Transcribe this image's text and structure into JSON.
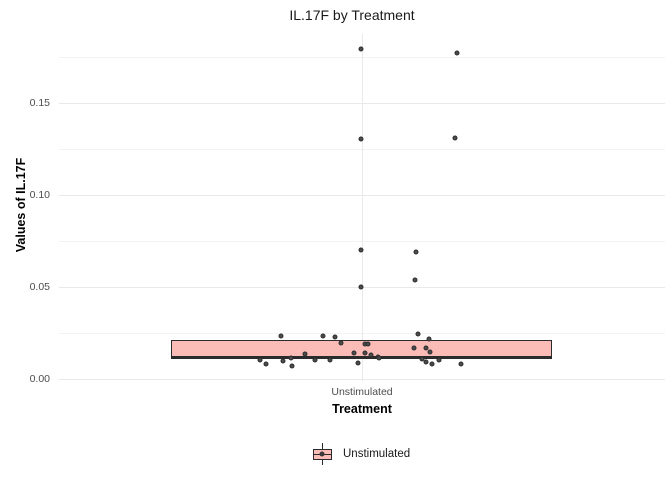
{
  "title": "IL.17F by Treatment",
  "axes": {
    "y_title": "Values of IL.17F",
    "x_title": "Treatment",
    "y_tick_labels": [
      "0.00",
      "0.05",
      "0.10",
      "0.15"
    ],
    "x_tick_label": "Unstimulated"
  },
  "legend": {
    "label": "Unstimulated"
  },
  "colors": {
    "box_fill": "#fbbcb8",
    "box_stroke": "#2b2b2b",
    "point": "#4c4c4c",
    "grid_major": "#e9e9e9",
    "grid_minor": "#f3f3f3",
    "tick_text": "#4d4d4d"
  },
  "chart_data": {
    "type": "boxplot",
    "title": "IL.17F by Treatment",
    "xlabel": "Treatment",
    "ylabel": "Values of IL.17F",
    "categories": [
      "Unstimulated"
    ],
    "ylim": [
      -0.001,
      0.188
    ],
    "y_major_ticks": [
      0.0,
      0.05,
      0.1,
      0.15
    ],
    "y_minor_ticks": [
      0.025,
      0.075,
      0.125,
      0.175
    ],
    "grid": true,
    "legend_position": "bottom",
    "box": {
      "q1": 0.011,
      "median": 0.012,
      "q3": 0.021,
      "whiskers_visible": false
    },
    "points_note": "jittered points as [x_offset_px_from_category_center, y_value]",
    "points": [
      [
        -80.5,
        0.0234
      ],
      [
        -38.5,
        0.0234
      ],
      [
        -26.5,
        0.0228
      ],
      [
        -20.5,
        0.0196
      ],
      [
        3.5,
        0.019
      ],
      [
        6.5,
        0.019
      ],
      [
        56.5,
        0.0245
      ],
      [
        67.5,
        0.0217
      ],
      [
        52.5,
        0.0168
      ],
      [
        64.5,
        0.0168
      ],
      [
        68.5,
        0.0147
      ],
      [
        -7.5,
        0.0141
      ],
      [
        3.5,
        0.0141
      ],
      [
        9.5,
        0.013
      ],
      [
        16.5,
        0.012
      ],
      [
        -56.5,
        0.0136
      ],
      [
        -70.5,
        0.0114
      ],
      [
        -101.5,
        0.0103
      ],
      [
        -95.5,
        0.0082
      ],
      [
        -78.5,
        0.0098
      ],
      [
        -69.5,
        0.0071
      ],
      [
        -46.5,
        0.0103
      ],
      [
        -31.5,
        0.0103
      ],
      [
        -3.5,
        0.0087
      ],
      [
        17.5,
        0.0114
      ],
      [
        60.5,
        0.0109
      ],
      [
        64.5,
        0.0092
      ],
      [
        70.5,
        0.0082
      ],
      [
        77.5,
        0.0103
      ],
      [
        99.5,
        0.0082
      ],
      [
        -0.5,
        0.1793
      ],
      [
        95.5,
        0.1772
      ],
      [
        -0.5,
        0.1304
      ],
      [
        93.5,
        0.131
      ],
      [
        -0.5,
        0.0701
      ],
      [
        54.5,
        0.069
      ],
      [
        53.5,
        0.0538
      ],
      [
        -0.5,
        0.05
      ]
    ]
  }
}
